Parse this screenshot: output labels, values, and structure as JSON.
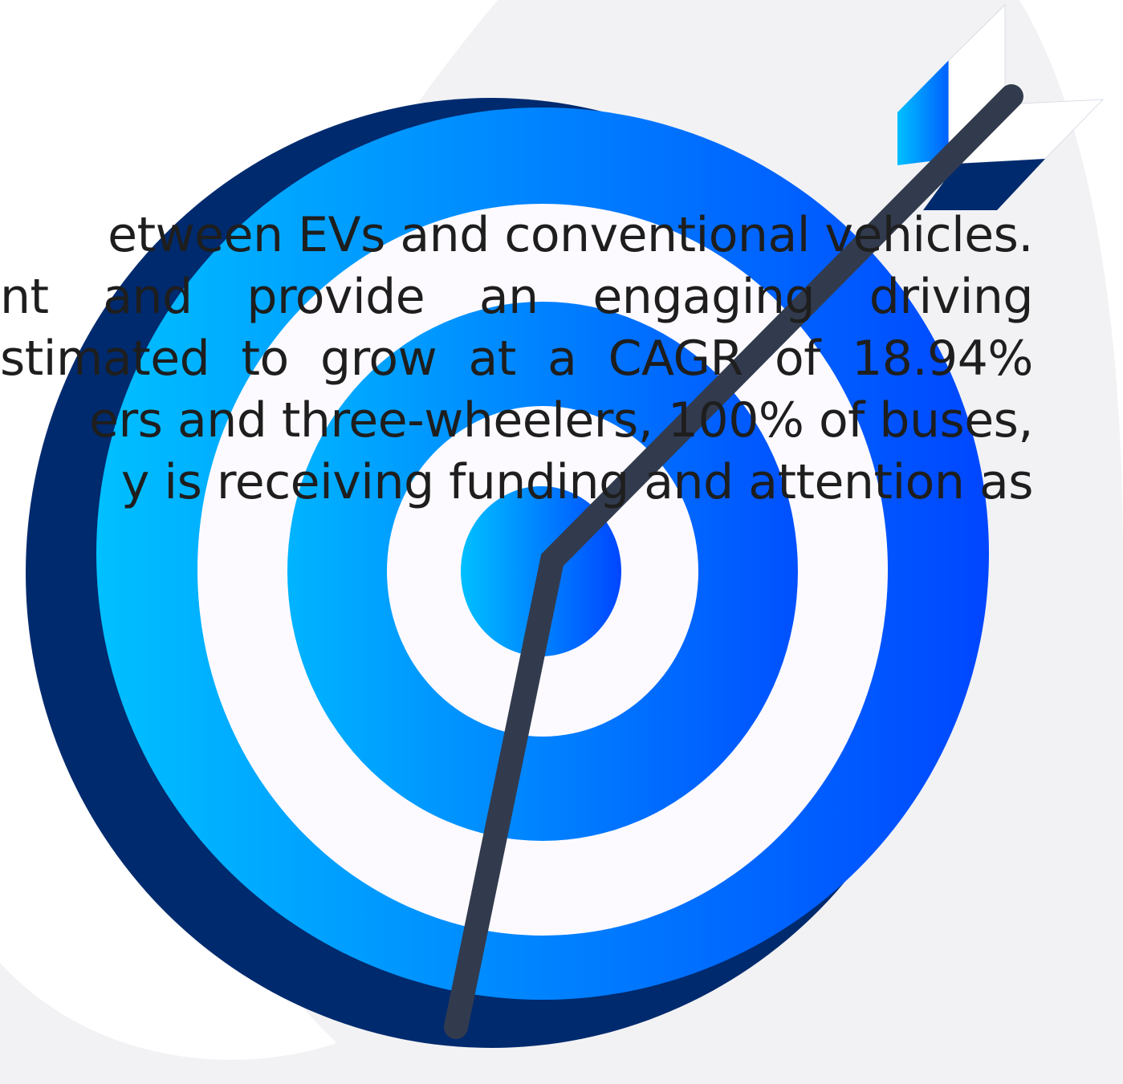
{
  "text_lines": [
    {
      "text": "etween EVs and conventional vehicles.",
      "words": []
    },
    {
      "text": "nt and provide an engaging driving",
      "words": [
        "nt",
        "and",
        "provide",
        "an",
        "engaging",
        "driving"
      ]
    },
    {
      "text": "stimated to grow at a CAGR of 18.94%",
      "words": [
        "stimated",
        "to",
        "grow",
        "at",
        "a",
        "CAGR",
        "of",
        "18.94%"
      ]
    },
    {
      "text": "ers and three-wheelers, 100% of buses,",
      "words": []
    },
    {
      "text": "y is receiving funding and attention as",
      "words": []
    }
  ],
  "colors": {
    "target_dark": "#002a6e",
    "ring_light": "#00b8ff",
    "ring_deep": "#0046ff",
    "ring_white": "#fdfaff",
    "arrow_shaft": "#323b4e",
    "background_shape": "#f2f2f4",
    "text": "#1e1e1e"
  },
  "icons": {
    "target": "bullseye-target-icon",
    "arrow": "arrow-icon"
  }
}
